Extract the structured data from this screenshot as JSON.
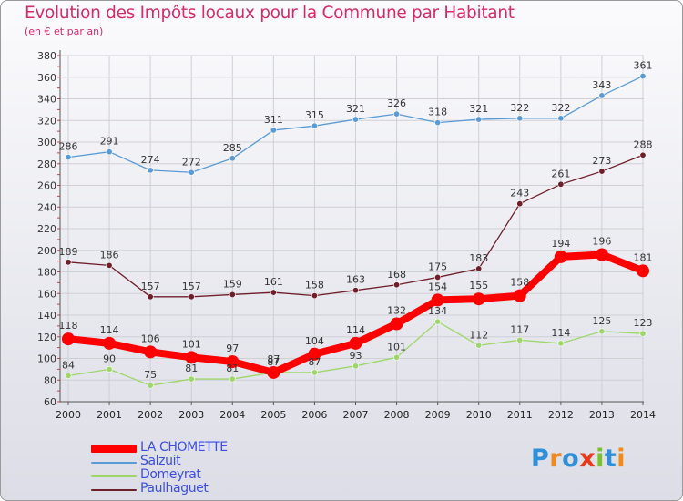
{
  "header": {
    "title": "Evolution des Impôts locaux pour la Commune par Habitant",
    "subtitle": "(en € et par an)"
  },
  "brand": {
    "letters": [
      "P",
      "r",
      "o",
      "x",
      "i",
      "t",
      "i"
    ],
    "colors": [
      "#2f8fd8",
      "#f08a1c",
      "#2f8fd8",
      "#e8391c",
      "#7bc12a",
      "#2f8fd8",
      "#f08a1c"
    ]
  },
  "chart_data": {
    "type": "line",
    "x": [
      "2000",
      "2001",
      "2002",
      "2003",
      "2004",
      "2005",
      "2006",
      "2007",
      "2008",
      "2009",
      "2010",
      "2011",
      "2012",
      "2013",
      "2014"
    ],
    "ylim": [
      60,
      380
    ],
    "yticks": [
      60,
      80,
      100,
      120,
      140,
      160,
      180,
      200,
      220,
      240,
      260,
      280,
      300,
      320,
      340,
      360,
      380
    ],
    "grid": true,
    "legend": "bottom-left",
    "series": [
      {
        "name": "Salzuit",
        "color": "#5b9bd5",
        "values": [
          286,
          291,
          274,
          272,
          285,
          311,
          315,
          321,
          326,
          318,
          321,
          322,
          322,
          343,
          361
        ]
      },
      {
        "name": "Paulhaguet",
        "color": "#6e1f2a",
        "values": [
          189,
          186,
          157,
          157,
          159,
          161,
          158,
          163,
          168,
          175,
          183,
          243,
          261,
          273,
          288
        ]
      },
      {
        "name": "Domeyrat",
        "color": "#9ed66a",
        "values": [
          84,
          90,
          75,
          81,
          81,
          87,
          87,
          93,
          101,
          134,
          112,
          117,
          114,
          125,
          123
        ]
      },
      {
        "name": "LA CHOMETTE",
        "color": "#ff0000",
        "values": [
          118,
          114,
          106,
          101,
          97,
          87,
          104,
          114,
          132,
          154,
          155,
          158,
          194,
          196,
          181
        ]
      }
    ],
    "legend_order": [
      "LA CHOMETTE",
      "Salzuit",
      "Domeyrat",
      "Paulhaguet"
    ]
  }
}
